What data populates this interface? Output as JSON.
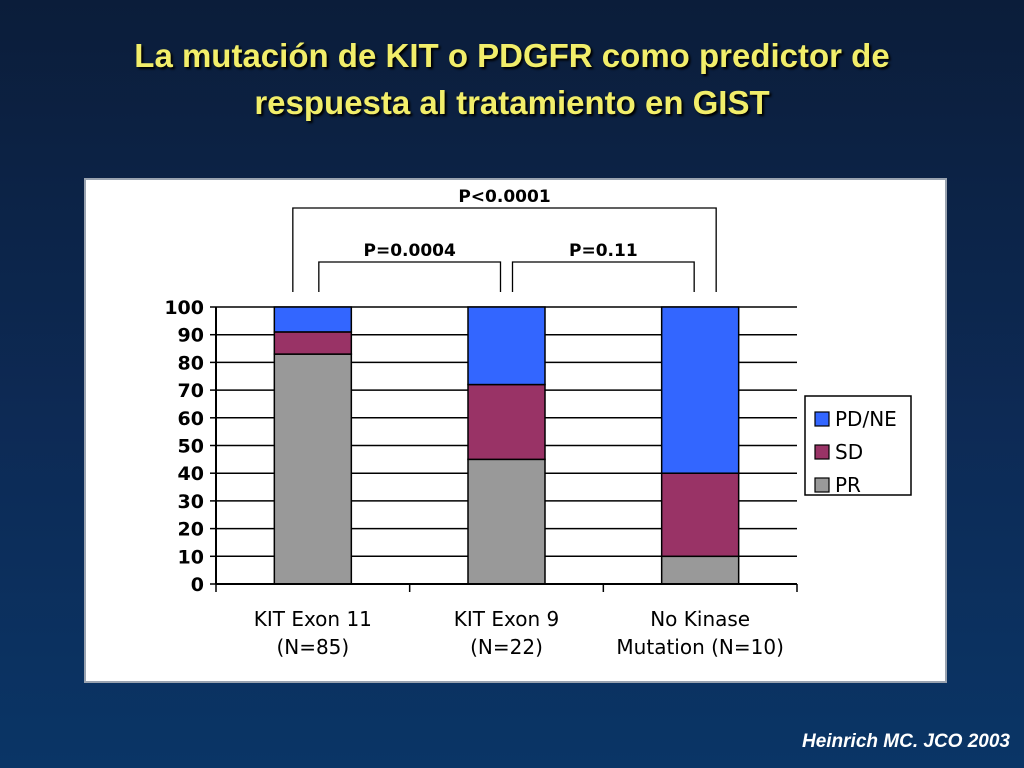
{
  "slide": {
    "title_line1": "La mutación de KIT o PDGFR como predictor de",
    "title_line2": "respuesta al tratamiento en GIST",
    "citation": "Heinrich MC. JCO 2003",
    "title_color": "#f2ee6a"
  },
  "chart_data": {
    "type": "bar",
    "stacked": true,
    "title": "",
    "xlabel": "",
    "ylabel": "",
    "ylim": [
      0,
      100
    ],
    "yticks": [
      0,
      10,
      20,
      30,
      40,
      50,
      60,
      70,
      80,
      90,
      100
    ],
    "grid": true,
    "categories": [
      [
        "KIT Exon 11",
        "(N=85)"
      ],
      [
        "KIT Exon 9",
        "(N=22)"
      ],
      [
        "No Kinase",
        "Mutation (N=10)"
      ]
    ],
    "series": [
      {
        "name": "PR",
        "color": "#999999",
        "values": [
          83,
          45,
          10
        ]
      },
      {
        "name": "SD",
        "color": "#993366",
        "values": [
          8,
          27,
          30
        ]
      },
      {
        "name": "PD/NE",
        "color": "#3366ff",
        "values": [
          9,
          28,
          60
        ]
      }
    ],
    "legend_position": "right",
    "legend_order": [
      "PD/NE",
      "SD",
      "PR"
    ],
    "annotations": [
      {
        "label": "P<0.0001",
        "from_category": 0,
        "to_category": 2
      },
      {
        "label": "P=0.0004",
        "from_category": 0,
        "to_category": 1
      },
      {
        "label": "P=0.11",
        "from_category": 1,
        "to_category": 2
      }
    ]
  }
}
